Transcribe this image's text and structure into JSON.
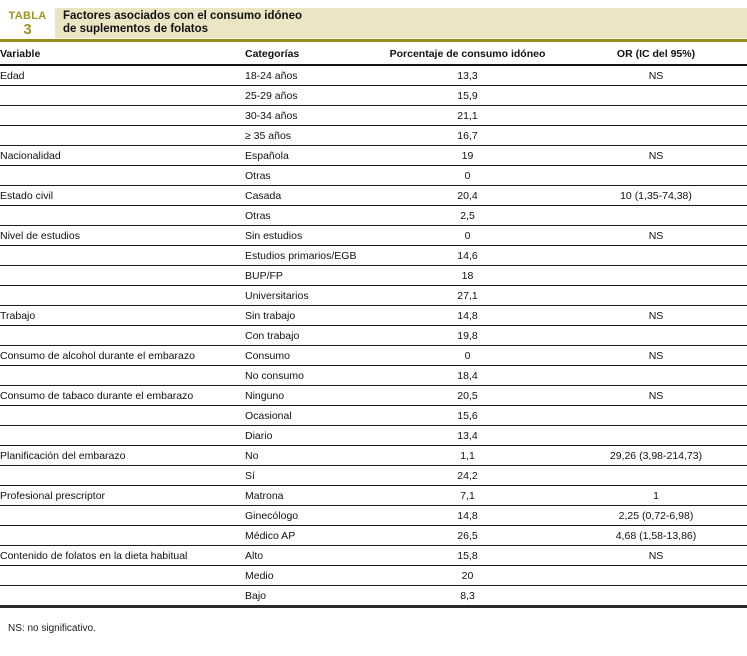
{
  "label": {
    "word": "TABLA",
    "number": "3"
  },
  "title": {
    "line1": "Factores asociados con el consumo idóneo",
    "line2": "de suplementos de folatos"
  },
  "columns": [
    "Variable",
    "Categorías",
    "Porcentaje de consumo idóneo",
    "OR (IC del 95%)"
  ],
  "rows": [
    {
      "variable": "Edad",
      "category": "18-24 años",
      "pct": "13,3",
      "or": "NS"
    },
    {
      "variable": "",
      "category": "25-29 años",
      "pct": "15,9",
      "or": ""
    },
    {
      "variable": "",
      "category": "30-34 años",
      "pct": "21,1",
      "or": ""
    },
    {
      "variable": "",
      "category": "≥ 35 años",
      "pct": "16,7",
      "or": ""
    },
    {
      "variable": "Nacionalidad",
      "category": "Española",
      "pct": "19",
      "or": "NS"
    },
    {
      "variable": "",
      "category": "Otras",
      "pct": "0",
      "or": ""
    },
    {
      "variable": "Estado civil",
      "category": "Casada",
      "pct": "20,4",
      "or": "10 (1,35-74,38)"
    },
    {
      "variable": "",
      "category": "Otras",
      "pct": "2,5",
      "or": ""
    },
    {
      "variable": "Nivel de estudios",
      "category": "Sin estudios",
      "pct": "0",
      "or": "NS"
    },
    {
      "variable": "",
      "category": "Estudios primarios/EGB",
      "pct": "14,6",
      "or": ""
    },
    {
      "variable": "",
      "category": "BUP/FP",
      "pct": "18",
      "or": ""
    },
    {
      "variable": "",
      "category": "Universitarios",
      "pct": "27,1",
      "or": ""
    },
    {
      "variable": "Trabajo",
      "category": "Sin trabajo",
      "pct": "14,8",
      "or": "NS"
    },
    {
      "variable": "",
      "category": "Con trabajo",
      "pct": "19,8",
      "or": ""
    },
    {
      "variable": "Consumo de alcohol durante el embarazo",
      "category": "Consumo",
      "pct": "0",
      "or": "NS"
    },
    {
      "variable": "",
      "category": "No consumo",
      "pct": "18,4",
      "or": ""
    },
    {
      "variable": "Consumo de tabaco durante el embarazo",
      "category": "Ninguno",
      "pct": "20,5",
      "or": "NS"
    },
    {
      "variable": "",
      "category": "Ocasional",
      "pct": "15,6",
      "or": ""
    },
    {
      "variable": "",
      "category": "Diario",
      "pct": "13,4",
      "or": ""
    },
    {
      "variable": "Planificación del embarazo",
      "category": "No",
      "pct": "1,1",
      "or": "29,26 (3,98-214,73)"
    },
    {
      "variable": "",
      "category": "Sí",
      "pct": "24,2",
      "or": ""
    },
    {
      "variable": "Profesional prescriptor",
      "category": "Matrona",
      "pct": "7,1",
      "or": "1"
    },
    {
      "variable": "",
      "category": "Ginecólogo",
      "pct": "14,8",
      "or": "2,25 (0,72-6,98)"
    },
    {
      "variable": "",
      "category": "Médico AP",
      "pct": "26,5",
      "or": "4,68 (1,58-13,86)"
    },
    {
      "variable": "Contenido de folatos en la dieta habitual",
      "category": "Alto",
      "pct": "15,8",
      "or": "NS"
    },
    {
      "variable": "",
      "category": "Medio",
      "pct": "20",
      "or": ""
    },
    {
      "variable": "",
      "category": "Bajo",
      "pct": "8,3",
      "or": ""
    }
  ],
  "footnote": "NS: no significativo.",
  "colors": {
    "accent_olive": "#988d1c",
    "banner_background": "#ebe5c4",
    "label_text": "#a0961e",
    "rule_black": "#161616"
  }
}
